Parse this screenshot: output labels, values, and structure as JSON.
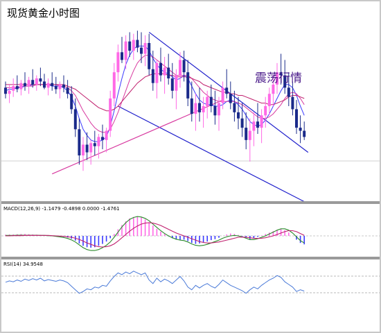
{
  "page": {
    "title": "现货黄金小时图",
    "annotation": "震荡行情"
  },
  "colors": {
    "bull_candle": "#ff69e6",
    "bear_candle": "#1a2a8a",
    "channel": "#2020cc",
    "ma_fast": "#3a3aff",
    "ma_mid": "#d83aa0",
    "ma_slow": "#c0206e",
    "macd_hist_pos": "#ff69e6",
    "macd_hist_neg": "#3a3aff",
    "macd_line": "#2a8a2a",
    "signal_line": "#c0206e",
    "rsi_line": "#4a7ad8",
    "panel_separator": "#9a9a9a"
  },
  "chart_data": [
    {
      "type": "candlestick",
      "title": "现货黄金小时图",
      "annotation": "震荡行情",
      "ylim": [
        0,
        100
      ],
      "grid": false,
      "candles": [
        [
          62,
          66,
          55,
          58
        ],
        [
          58,
          64,
          52,
          60
        ],
        [
          60,
          68,
          56,
          63
        ],
        [
          63,
          70,
          59,
          61
        ],
        [
          61,
          67,
          57,
          65
        ],
        [
          65,
          72,
          60,
          63
        ],
        [
          63,
          69,
          58,
          67
        ],
        [
          67,
          74,
          62,
          64
        ],
        [
          64,
          70,
          60,
          68
        ],
        [
          68,
          75,
          63,
          66
        ],
        [
          66,
          71,
          61,
          62
        ],
        [
          62,
          68,
          57,
          65
        ],
        [
          65,
          72,
          60,
          63
        ],
        [
          63,
          69,
          58,
          61
        ],
        [
          61,
          66,
          55,
          64
        ],
        [
          64,
          70,
          59,
          62
        ],
        [
          62,
          67,
          55,
          58
        ],
        [
          58,
          63,
          45,
          48
        ],
        [
          48,
          55,
          30,
          35
        ],
        [
          35,
          42,
          12,
          18
        ],
        [
          18,
          30,
          8,
          25
        ],
        [
          25,
          33,
          15,
          20
        ],
        [
          20,
          28,
          12,
          26
        ],
        [
          26,
          34,
          18,
          24
        ],
        [
          24,
          32,
          16,
          30
        ],
        [
          30,
          38,
          22,
          28
        ],
        [
          28,
          36,
          20,
          34
        ],
        [
          34,
          60,
          30,
          55
        ],
        [
          55,
          78,
          50,
          72
        ],
        [
          72,
          90,
          66,
          85
        ],
        [
          85,
          95,
          78,
          80
        ],
        [
          80,
          96,
          74,
          92
        ],
        [
          92,
          98,
          82,
          86
        ],
        [
          86,
          97,
          80,
          93
        ],
        [
          93,
          99,
          85,
          88
        ],
        [
          88,
          98,
          78,
          84
        ],
        [
          84,
          96,
          76,
          91
        ],
        [
          91,
          97,
          70,
          74
        ],
        [
          74,
          86,
          60,
          65
        ],
        [
          65,
          80,
          55,
          78
        ],
        [
          78,
          88,
          66,
          70
        ],
        [
          70,
          82,
          58,
          75
        ],
        [
          75,
          84,
          64,
          68
        ],
        [
          68,
          78,
          55,
          60
        ],
        [
          60,
          74,
          48,
          70
        ],
        [
          70,
          85,
          62,
          80
        ],
        [
          80,
          86,
          66,
          72
        ],
        [
          72,
          80,
          50,
          55
        ],
        [
          55,
          66,
          40,
          45
        ],
        [
          45,
          58,
          34,
          52
        ],
        [
          52,
          62,
          40,
          46
        ],
        [
          46,
          56,
          36,
          50
        ],
        [
          50,
          60,
          42,
          56
        ],
        [
          56,
          64,
          46,
          50
        ],
        [
          50,
          60,
          38,
          44
        ],
        [
          44,
          56,
          34,
          52
        ],
        [
          52,
          66,
          48,
          62
        ],
        [
          62,
          74,
          55,
          58
        ],
        [
          58,
          66,
          48,
          52
        ],
        [
          52,
          60,
          40,
          46
        ],
        [
          46,
          56,
          35,
          42
        ],
        [
          42,
          52,
          30,
          36
        ],
        [
          36,
          46,
          22,
          28
        ],
        [
          28,
          42,
          14,
          34
        ],
        [
          34,
          46,
          24,
          40
        ],
        [
          40,
          52,
          32,
          36
        ],
        [
          36,
          48,
          26,
          44
        ],
        [
          44,
          56,
          36,
          50
        ],
        [
          50,
          62,
          44,
          58
        ],
        [
          58,
          70,
          50,
          64
        ],
        [
          64,
          78,
          58,
          72
        ],
        [
          72,
          84,
          64,
          70
        ],
        [
          70,
          80,
          58,
          62
        ],
        [
          62,
          72,
          50,
          56
        ],
        [
          56,
          66,
          44,
          48
        ],
        [
          48,
          54,
          32,
          36
        ],
        [
          36,
          44,
          26,
          34
        ],
        [
          34,
          40,
          28,
          30
        ]
      ],
      "ma_lines": [
        {
          "values": [
            60,
            61,
            61,
            62,
            62,
            63,
            63,
            64,
            64,
            64,
            64,
            64,
            63,
            63,
            63,
            62,
            60,
            56,
            50,
            42,
            35,
            31,
            28,
            27,
            27,
            28,
            30,
            37,
            47,
            58,
            68,
            77,
            83,
            87,
            89,
            89,
            89,
            86,
            81,
            77,
            74,
            72,
            71,
            69,
            67,
            68,
            70,
            68,
            63,
            58,
            54,
            52,
            51,
            51,
            50,
            50,
            51,
            53,
            54,
            53,
            51,
            48,
            44,
            40,
            38,
            37,
            38,
            41,
            45,
            50,
            55,
            60,
            64,
            64,
            62,
            57,
            50,
            44
          ]
        },
        {
          "values": [
            62,
            62,
            62,
            62,
            63,
            63,
            63,
            63,
            64,
            64,
            64,
            64,
            64,
            64,
            63,
            63,
            62,
            60,
            57,
            52,
            47,
            43,
            39,
            36,
            34,
            33,
            33,
            35,
            40,
            46,
            53,
            60,
            67,
            73,
            78,
            81,
            83,
            83,
            82,
            80,
            78,
            76,
            74,
            72,
            70,
            70,
            70,
            70,
            68,
            65,
            62,
            59,
            57,
            55,
            54,
            53,
            53,
            53,
            53,
            53,
            52,
            51,
            49,
            47,
            45,
            43,
            42,
            42,
            43,
            45,
            48,
            51,
            55,
            58,
            59,
            58,
            55,
            51
          ]
        },
        {
          "values": [
            64,
            64,
            64,
            64,
            64,
            64,
            64,
            64,
            64,
            64,
            64,
            64,
            64,
            64,
            64,
            64,
            63,
            62,
            61,
            59,
            57,
            55,
            53,
            51,
            49,
            48,
            47,
            47,
            48,
            50,
            53,
            56,
            59,
            62,
            65,
            67,
            69,
            70,
            71,
            71,
            71,
            71,
            70,
            70,
            69,
            69,
            69,
            69,
            68,
            67,
            66,
            64,
            63,
            62,
            61,
            60,
            59,
            59,
            58,
            58,
            57,
            57,
            56,
            55,
            54,
            53,
            52,
            52,
            51,
            51,
            52,
            53,
            54,
            56,
            57,
            57,
            56,
            55
          ]
        }
      ],
      "trend_lines": [
        {
          "from": [
            37,
            98
          ],
          "to": [
            78,
            20
          ]
        },
        {
          "from": [
            29,
            50
          ],
          "to": [
            77,
            -12
          ]
        },
        {
          "from": [
            12,
            6
          ],
          "to": [
            56,
            54
          ]
        }
      ]
    },
    {
      "type": "bar",
      "title": "MACD(12,26,9) -1.1479 -0.4898 0.0000 -1.4761",
      "ylim": [
        -1,
        1
      ],
      "histogram": [
        0.05,
        0.06,
        0.06,
        0.07,
        0.08,
        0.08,
        0.07,
        0.06,
        0.05,
        0.04,
        0.03,
        0.02,
        0.01,
        0.0,
        -0.02,
        -0.04,
        -0.07,
        -0.12,
        -0.2,
        -0.32,
        -0.42,
        -0.48,
        -0.5,
        -0.48,
        -0.42,
        -0.34,
        -0.24,
        -0.1,
        0.08,
        0.28,
        0.46,
        0.62,
        0.74,
        0.8,
        0.82,
        0.78,
        0.7,
        0.58,
        0.44,
        0.3,
        0.18,
        0.08,
        -0.02,
        -0.1,
        -0.16,
        -0.18,
        -0.16,
        -0.22,
        -0.3,
        -0.34,
        -0.32,
        -0.28,
        -0.24,
        -0.18,
        -0.14,
        -0.08,
        0.0,
        0.06,
        0.1,
        0.08,
        0.04,
        -0.02,
        -0.08,
        -0.14,
        -0.1,
        -0.04,
        0.02,
        0.08,
        0.14,
        0.2,
        0.26,
        0.3,
        0.24,
        0.14,
        0.0,
        -0.16,
        -0.3,
        -0.36
      ],
      "macd_line": [
        0.02,
        0.02,
        0.02,
        0.03,
        0.03,
        0.03,
        0.03,
        0.03,
        0.03,
        0.02,
        0.02,
        0.01,
        0.0,
        -0.02,
        -0.04,
        -0.07,
        -0.11,
        -0.17,
        -0.26,
        -0.38,
        -0.5,
        -0.58,
        -0.62,
        -0.62,
        -0.58,
        -0.5,
        -0.4,
        -0.26,
        -0.06,
        0.16,
        0.38,
        0.56,
        0.7,
        0.78,
        0.82,
        0.8,
        0.74,
        0.64,
        0.5,
        0.36,
        0.22,
        0.1,
        0.0,
        -0.08,
        -0.14,
        -0.18,
        -0.2,
        -0.26,
        -0.34,
        -0.4,
        -0.42,
        -0.4,
        -0.36,
        -0.3,
        -0.24,
        -0.18,
        -0.1,
        -0.04,
        0.0,
        0.02,
        0.0,
        -0.04,
        -0.1,
        -0.16,
        -0.16,
        -0.12,
        -0.06,
        0.0,
        0.08,
        0.16,
        0.24,
        0.3,
        0.3,
        0.24,
        0.12,
        -0.04,
        -0.2,
        -0.3
      ],
      "signal_line": [
        0.0,
        0.0,
        0.01,
        0.01,
        0.01,
        0.02,
        0.02,
        0.02,
        0.02,
        0.02,
        0.02,
        0.02,
        0.01,
        0.0,
        -0.01,
        -0.02,
        -0.04,
        -0.06,
        -0.1,
        -0.15,
        -0.22,
        -0.3,
        -0.36,
        -0.42,
        -0.46,
        -0.47,
        -0.46,
        -0.42,
        -0.34,
        -0.22,
        -0.08,
        0.06,
        0.2,
        0.32,
        0.42,
        0.5,
        0.54,
        0.56,
        0.54,
        0.5,
        0.44,
        0.36,
        0.28,
        0.2,
        0.12,
        0.06,
        0.0,
        -0.06,
        -0.12,
        -0.18,
        -0.24,
        -0.28,
        -0.3,
        -0.3,
        -0.28,
        -0.26,
        -0.22,
        -0.18,
        -0.14,
        -0.1,
        -0.06,
        -0.05,
        -0.06,
        -0.08,
        -0.1,
        -0.11,
        -0.1,
        -0.08,
        -0.04,
        0.0,
        0.06,
        0.12,
        0.18,
        0.22,
        0.22,
        0.18,
        0.1,
        0.02
      ]
    },
    {
      "type": "line",
      "title": "RSI(14) 34.9548",
      "ylim": [
        0,
        100
      ],
      "levels": [
        70,
        30
      ],
      "values": [
        55,
        58,
        56,
        60,
        57,
        62,
        59,
        63,
        60,
        64,
        58,
        61,
        59,
        57,
        60,
        58,
        54,
        46,
        38,
        30,
        34,
        40,
        38,
        44,
        42,
        48,
        46,
        58,
        68,
        76,
        72,
        78,
        74,
        80,
        76,
        72,
        76,
        60,
        52,
        64,
        56,
        62,
        58,
        52,
        60,
        68,
        58,
        44,
        38,
        48,
        42,
        48,
        52,
        46,
        42,
        50,
        60,
        54,
        48,
        44,
        40,
        36,
        30,
        38,
        44,
        40,
        48,
        54,
        60,
        64,
        70,
        66,
        56,
        50,
        44,
        34,
        38,
        35
      ]
    }
  ]
}
